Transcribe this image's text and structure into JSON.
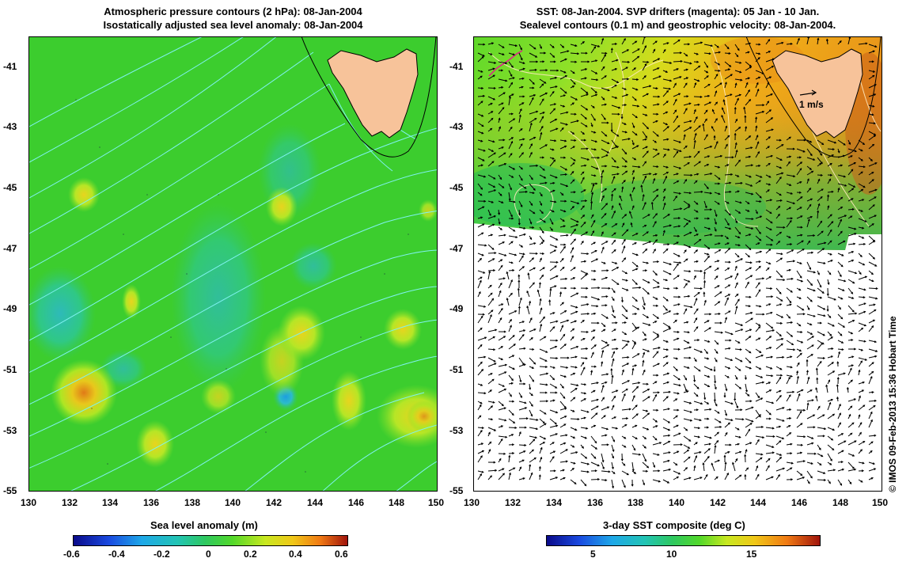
{
  "left_panel": {
    "title_line1": "Atmospheric pressure contours (2 hPa): 08-Jan-2004",
    "title_line2": "Isostatically adjusted sea level anomaly: 08-Jan-2004",
    "colorbar_label": "Sea level anomaly (m)",
    "colorbar_ticks": [
      "-0.6",
      "-0.4",
      "-0.2",
      "0",
      "0.2",
      "0.4",
      "0.6"
    ]
  },
  "right_panel": {
    "title_line1": "SST: 08-Jan-2004. SVP drifters (magenta): 05 Jan - 10 Jan.",
    "title_line2": "Sealevel contours (0.1 m) and geostrophic velocity: 08-Jan-2004.",
    "scale_arrow_label": "1 m/s",
    "colorbar_label": "3-day SST composite (deg C)",
    "colorbar_ticks": [
      "5",
      "10",
      "15"
    ]
  },
  "axes": {
    "lon_ticks": [
      "130",
      "132",
      "134",
      "136",
      "138",
      "140",
      "142",
      "144",
      "146",
      "148",
      "150"
    ],
    "lat_ticks": [
      "-41",
      "-43",
      "-45",
      "-47",
      "-49",
      "-51",
      "-53",
      "-55"
    ]
  },
  "credit": "© IMOS 09-Feb-2013 15:36 Hobart Time",
  "colors": {
    "land": "#f7c39a",
    "sla_background": "#3ccd2e",
    "pressure_contour": "#7ff2f0",
    "sst_contour": "#ffe9c0",
    "drifter": "#e0208a"
  }
}
